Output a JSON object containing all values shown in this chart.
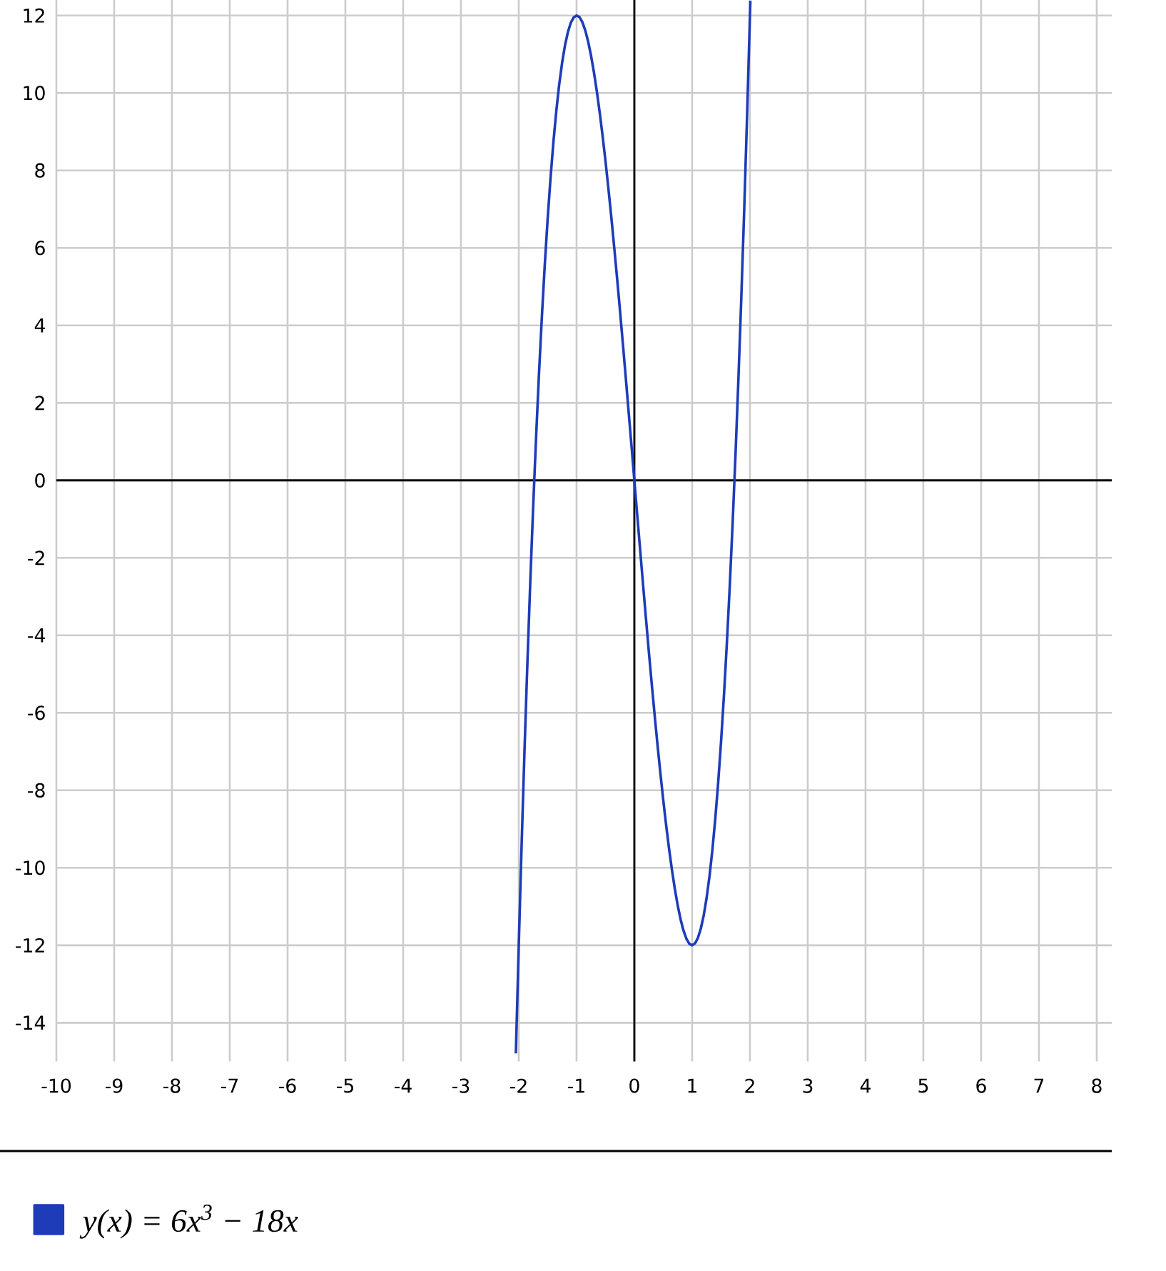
{
  "chart_data": {
    "type": "line",
    "x": [
      -2.05,
      -2,
      -1.95,
      -1.9,
      -1.85,
      -1.8,
      -1.75,
      -1.7,
      -1.65,
      -1.6,
      -1.55,
      -1.5,
      -1.45,
      -1.4,
      -1.35,
      -1.3,
      -1.25,
      -1.2,
      -1.15,
      -1.1,
      -1.05,
      -1,
      -0.95,
      -0.9,
      -0.85,
      -0.8,
      -0.75,
      -0.7,
      -0.65,
      -0.6,
      -0.55,
      -0.5,
      -0.45,
      -0.4,
      -0.35,
      -0.3,
      -0.25,
      -0.2,
      -0.15,
      -0.1,
      -0.05,
      0,
      0.05,
      0.1,
      0.15,
      0.2,
      0.25,
      0.3,
      0.35,
      0.4,
      0.45,
      0.5,
      0.55,
      0.6,
      0.65,
      0.7,
      0.75,
      0.8,
      0.85,
      0.9,
      0.95,
      1,
      1.05,
      1.1,
      1.15,
      1.2,
      1.25,
      1.3,
      1.35,
      1.4,
      1.45,
      1.5,
      1.55,
      1.6,
      1.65,
      1.7,
      1.75,
      1.8,
      1.85,
      1.9,
      1.95,
      2,
      2.007
    ],
    "series": [
      {
        "name": "y(x) = 6x$^{3}$ − 18x",
        "color": "#1e3cb8",
        "values": [
          -14.79,
          -12,
          -9.39,
          -6.95,
          -4.69,
          -2.59,
          -0.66,
          1.12,
          2.75,
          4.22,
          5.56,
          6.75,
          7.81,
          8.74,
          9.54,
          10.22,
          10.78,
          11.23,
          11.57,
          11.81,
          11.95,
          12,
          11.96,
          11.83,
          11.62,
          11.33,
          10.97,
          10.54,
          10.05,
          9.5,
          8.9,
          8.25,
          7.55,
          6.82,
          6.04,
          5.24,
          4.41,
          3.55,
          2.68,
          1.79,
          0.9,
          0,
          -0.9,
          -1.79,
          -2.68,
          -3.55,
          -4.41,
          -5.24,
          -6.04,
          -6.82,
          -7.55,
          -8.25,
          -8.9,
          -9.5,
          -10.05,
          -10.54,
          -10.97,
          -11.33,
          -11.62,
          -11.83,
          -11.96,
          -12,
          -11.95,
          -11.81,
          -11.57,
          -11.23,
          -10.78,
          -10.22,
          -9.54,
          -8.74,
          -7.81,
          -6.75,
          -5.56,
          -4.22,
          -2.75,
          -1.12,
          0.66,
          2.59,
          4.69,
          6.95,
          9.39,
          12,
          12.38
        ]
      }
    ],
    "xlim": [
      -10,
      8.26
    ],
    "ylim": [
      -15,
      12.4
    ],
    "xticks": [
      -10,
      -9,
      -8,
      -7,
      -6,
      -5,
      -4,
      -3,
      -2,
      -1,
      0,
      1,
      2,
      3,
      4,
      5,
      6,
      7,
      8
    ],
    "yticks": [
      -14,
      -12,
      -10,
      -8,
      -6,
      -4,
      -2,
      0,
      2,
      4,
      6,
      8,
      10,
      12
    ],
    "grid": true,
    "legend": "bottom left"
  }
}
